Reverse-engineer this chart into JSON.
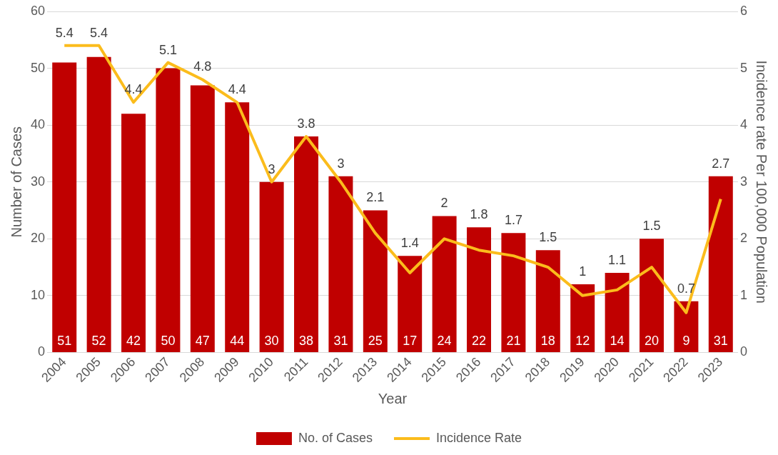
{
  "chart_data": {
    "type": "bar",
    "xlabel": "Year",
    "ylabel": "Number of Cases",
    "y2label": "Incidence rate Per 100,000 Population",
    "categories": [
      "2004",
      "2005",
      "2006",
      "2007",
      "2008",
      "2009",
      "2010",
      "2011",
      "2012",
      "2013",
      "2014",
      "2015",
      "2016",
      "2017",
      "2018",
      "2019",
      "2020",
      "2021",
      "2022",
      "2023"
    ],
    "series": [
      {
        "name": "No. of Cases",
        "type": "bar",
        "color": "#c00000",
        "values": [
          51,
          52,
          42,
          50,
          47,
          44,
          30,
          38,
          31,
          25,
          17,
          24,
          22,
          21,
          18,
          12,
          14,
          20,
          9,
          31
        ]
      },
      {
        "name": "Incidence Rate",
        "type": "line",
        "axis": "y2",
        "color": "#fbbc1c",
        "values": [
          5.4,
          5.4,
          4.4,
          5.1,
          4.8,
          4.4,
          3,
          3.8,
          3,
          2.1,
          1.4,
          2,
          1.8,
          1.7,
          1.5,
          1,
          1.1,
          1.5,
          0.7,
          2.7
        ]
      }
    ],
    "ylim": [
      0,
      60
    ],
    "yticks": [
      0,
      10,
      20,
      30,
      40,
      50,
      60
    ],
    "y2lim": [
      0,
      6
    ],
    "y2ticks": [
      0,
      1,
      2,
      3,
      4,
      5,
      6
    ],
    "grid": "y",
    "legend": "bottom",
    "data_labels": true,
    "marker": "none",
    "line_style": "solid"
  }
}
